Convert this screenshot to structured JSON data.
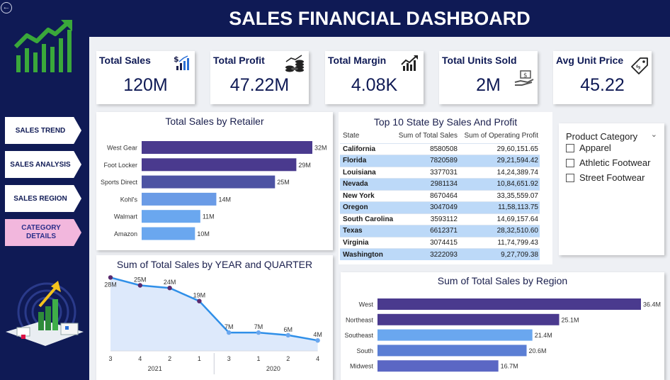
{
  "header": {
    "title": "SALES FINANCIAL DASHBOARD"
  },
  "nav": {
    "items": [
      {
        "label": "SALES TREND"
      },
      {
        "label": "SALES ANALYSIS"
      },
      {
        "label": "SALES REGION"
      },
      {
        "label": "CATEGORY DETAILS"
      }
    ],
    "back_icon": "back-arrow-icon"
  },
  "kpis": [
    {
      "title": "Total Sales",
      "value": "120M",
      "icon": "sales-chart-icon"
    },
    {
      "title": "Total Profit",
      "value": "47.22M",
      "icon": "coins-icon"
    },
    {
      "title": "Total Margin",
      "value": "4.08K",
      "icon": "margin-chart-icon"
    },
    {
      "title": "Total Units Sold",
      "value": "2M",
      "icon": "hand-money-icon"
    },
    {
      "title": "Avg Unit Price",
      "value": "45.22",
      "icon": "price-tag-icon"
    }
  ],
  "retailer_chart": {
    "title": "Total Sales by Retailer",
    "chart_data": {
      "type": "bar",
      "orientation": "horizontal",
      "categories": [
        "West Gear",
        "Foot Locker",
        "Sports Direct",
        "Kohl's",
        "Walmart",
        "Amazon"
      ],
      "values": [
        32,
        29,
        25,
        14,
        11,
        10
      ],
      "labels": [
        "32M",
        "29M",
        "25M",
        "14M",
        "11M",
        "10M"
      ],
      "unit": "M",
      "colors": [
        "#4a3a8e",
        "#4a3a8e",
        "#4d53a3",
        "#6a9be6",
        "#6aa7ef",
        "#6aa7ef"
      ]
    }
  },
  "state_table": {
    "title": "Top 10 State By Sales And Profit",
    "columns": [
      "State",
      "Sum of Total Sales",
      "Sum of Operating Profit"
    ],
    "rows": [
      [
        "California",
        "8580508",
        "29,60,151.65"
      ],
      [
        "Florida",
        "7820589",
        "29,21,594.42"
      ],
      [
        "Louisiana",
        "3377031",
        "14,24,389.74"
      ],
      [
        "Nevada",
        "2981134",
        "10,84,651.92"
      ],
      [
        "New York",
        "8670464",
        "33,35,559.07"
      ],
      [
        "Oregon",
        "3047049",
        "11,58,113.75"
      ],
      [
        "South Carolina",
        "3593112",
        "14,69,157.64"
      ],
      [
        "Texas",
        "6612371",
        "28,32,510.60"
      ],
      [
        "Virginia",
        "3074415",
        "11,74,799.43"
      ],
      [
        "Washington",
        "3222093",
        "9,27,709.38"
      ]
    ]
  },
  "slicer": {
    "title": "Product Category",
    "options": [
      "Apparel",
      "Athletic Footwear",
      "Street Footwear"
    ]
  },
  "year_chart": {
    "title": "Sum of Total Sales by YEAR and QUARTER",
    "chart_data": {
      "type": "area",
      "categories": [
        "3",
        "4",
        "2",
        "1",
        "3",
        "1",
        "2",
        "4"
      ],
      "groups": [
        {
          "label": "2021",
          "from": 0,
          "to": 3
        },
        {
          "label": "2020",
          "from": 4,
          "to": 7
        }
      ],
      "values": [
        28,
        25,
        24,
        19,
        7,
        7,
        6,
        4
      ],
      "labels": [
        "28M",
        "25M",
        "24M",
        "19M",
        "7M",
        "7M",
        "6M",
        "4M"
      ],
      "unit": "M",
      "ylim": [
        0,
        30
      ],
      "line_color": "#2f8fe8",
      "fill_color": "#dde9fb",
      "marker_color": "#5a2a6e"
    }
  },
  "region_chart": {
    "title": "Sum of Total Sales by Region",
    "chart_data": {
      "type": "bar",
      "orientation": "horizontal",
      "categories": [
        "West",
        "Northeast",
        "Southeast",
        "South",
        "Midwest"
      ],
      "values": [
        36.4,
        25.1,
        21.4,
        20.6,
        16.7
      ],
      "labels": [
        "36.4M",
        "25.1M",
        "21.4M",
        "20.6M",
        "16.7M"
      ],
      "unit": "M",
      "colors": [
        "#4a3a8e",
        "#4a3a8e",
        "#6aa7ef",
        "#5b7ed4",
        "#5b67c4"
      ]
    }
  }
}
